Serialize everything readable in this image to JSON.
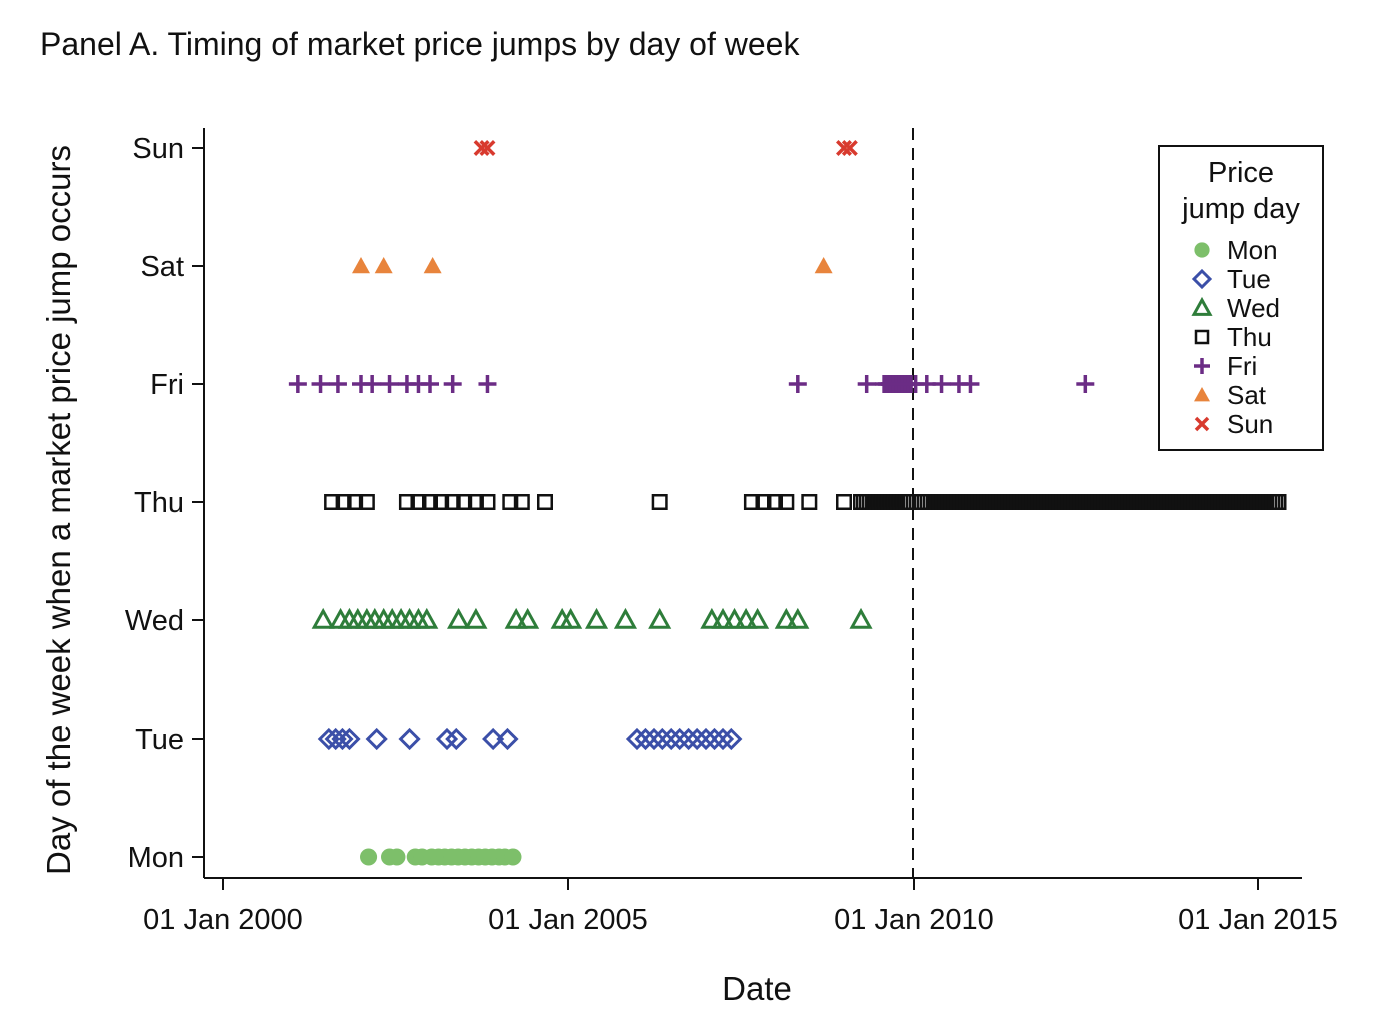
{
  "chart_data": {
    "type": "scatter",
    "title": "Panel A. Timing of market price jumps by day of week",
    "xlabel": "Date",
    "ylabel": "Day of the week when a market price jump occurs",
    "x_ticks": [
      "01 Jan 2000",
      "01 Jan 2005",
      "01 Jan 2010",
      "01 Jan 2015"
    ],
    "x_range": [
      "1999-09-01",
      "2015-07-01"
    ],
    "y_categories": [
      "Mon",
      "Tue",
      "Wed",
      "Thu",
      "Fri",
      "Sat",
      "Sun"
    ],
    "reference_line": {
      "x": "2010-01-01",
      "style": "dashed"
    },
    "legend": {
      "title": [
        "Price",
        "jump day"
      ],
      "placement": "top-right"
    },
    "series": [
      {
        "name": "Mon",
        "marker": "filled-circle",
        "color": "#7dbf6a",
        "x": [
          "2002-02-10",
          "2002-06-01",
          "2002-07-10",
          "2002-10-15",
          "2002-11-20",
          "2003-01-10",
          "2003-02-15",
          "2003-03-20",
          "2003-04-25",
          "2003-05-30",
          "2003-07-05",
          "2003-08-10",
          "2003-09-15",
          "2003-10-20",
          "2003-11-25",
          "2004-01-01",
          "2004-02-01",
          "2004-03-15"
        ]
      },
      {
        "name": "Tue",
        "marker": "open-diamond",
        "color": "#3b4fa8",
        "x": [
          "2001-07-15",
          "2001-08-20",
          "2001-09-25",
          "2001-11-01",
          "2002-03-25",
          "2002-09-15",
          "2003-04-01",
          "2003-05-20",
          "2003-12-01",
          "2004-02-15",
          "2006-01-01",
          "2006-02-15",
          "2006-04-01",
          "2006-05-15",
          "2006-07-01",
          "2006-08-15",
          "2006-10-01",
          "2006-11-15",
          "2007-01-01",
          "2007-02-15",
          "2007-04-01",
          "2007-05-15"
        ]
      },
      {
        "name": "Wed",
        "marker": "open-triangle",
        "color": "#2e7d3a",
        "x": [
          "2001-06-15",
          "2001-09-15",
          "2001-11-01",
          "2001-12-15",
          "2002-02-01",
          "2002-03-15",
          "2002-05-01",
          "2002-06-15",
          "2002-08-01",
          "2002-09-15",
          "2002-11-01",
          "2002-12-15",
          "2003-06-01",
          "2003-09-01",
          "2004-04-01",
          "2004-06-01",
          "2004-12-01",
          "2005-01-15",
          "2005-06-01",
          "2005-11-01",
          "2006-05-01",
          "2007-02-01",
          "2007-04-01",
          "2007-06-01",
          "2007-08-01",
          "2007-10-01",
          "2008-03-01",
          "2008-05-01",
          "2009-04-01"
        ]
      },
      {
        "name": "Thu",
        "marker": "open-square",
        "color": "#111111",
        "x": [
          "2001-08-01",
          "2001-10-01",
          "2001-12-01",
          "2002-02-01",
          "2002-09-01",
          "2002-11-01",
          "2003-01-01",
          "2003-03-01",
          "2003-05-01",
          "2003-07-01",
          "2003-09-01",
          "2003-11-01",
          "2004-03-01",
          "2004-05-01",
          "2004-09-01",
          "2006-05-01",
          "2007-09-01",
          "2007-11-01",
          "2008-01-01",
          "2008-03-01",
          "2008-07-01",
          "2009-01-01",
          "2009-10-01"
        ],
        "dense_ranges": [
          [
            "2009-04-01",
            "2009-12-01"
          ],
          [
            "2010-02-15",
            "2015-05-01"
          ]
        ]
      },
      {
        "name": "Fri",
        "marker": "plus",
        "color": "#6b2c85",
        "x": [
          "2001-02-01",
          "2001-06-01",
          "2001-09-01",
          "2002-01-01",
          "2002-03-01",
          "2002-06-01",
          "2002-09-01",
          "2002-11-01",
          "2003-01-01",
          "2003-05-01",
          "2003-11-01",
          "2008-05-01",
          "2009-05-01",
          "2009-09-01",
          "2009-10-15",
          "2009-11-15",
          "2010-01-15",
          "2010-03-15",
          "2010-06-01",
          "2010-09-01",
          "2010-11-01",
          "2012-07-01"
        ],
        "dense_ranges": [
          [
            "2009-08-01",
            "2010-01-01"
          ]
        ]
      },
      {
        "name": "Sat",
        "marker": "filled-triangle",
        "color": "#e8843c",
        "x": [
          "2002-01-01",
          "2002-05-01",
          "2003-01-15",
          "2008-09-15"
        ]
      },
      {
        "name": "Sun",
        "marker": "x",
        "color": "#d83a2e",
        "x": [
          "2003-10-01",
          "2003-11-01",
          "2009-01-01",
          "2009-02-01"
        ]
      }
    ]
  }
}
